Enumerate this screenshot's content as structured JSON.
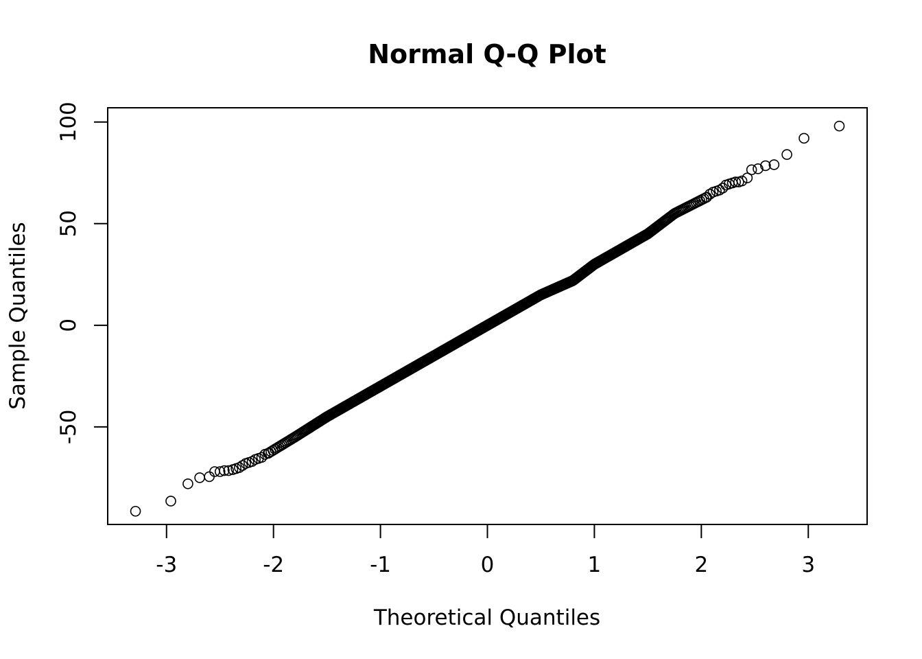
{
  "chart_data": {
    "type": "scatter",
    "title": "Normal Q-Q Plot",
    "xlabel": "Theoretical Quantiles",
    "ylabel": "Sample Quantiles",
    "xlim": [
      -3.55,
      3.55
    ],
    "ylim": [
      -98,
      107
    ],
    "xticks": [
      -3,
      -2,
      -1,
      0,
      1,
      2,
      3
    ],
    "xtick_labels": [
      "-3",
      "-2",
      "-1",
      "0",
      "1",
      "2",
      "3"
    ],
    "yticks": [
      -50,
      0,
      50,
      100
    ],
    "ytick_labels": [
      "-50",
      "0",
      "50",
      "100"
    ],
    "grid": false,
    "legend": "none",
    "point_style": "open-circle",
    "n_points": 1000,
    "line_fit": {
      "intercept": 0.0,
      "slope": 30.0
    },
    "tail_points": [
      {
        "x": -3.29,
        "y": -91.5
      },
      {
        "x": -2.96,
        "y": -86.5
      },
      {
        "x": -2.8,
        "y": -78.0
      },
      {
        "x": -2.69,
        "y": -75.0
      },
      {
        "x": -2.6,
        "y": -74.5
      },
      {
        "x": -2.55,
        "y": -72.0
      },
      {
        "x": -2.5,
        "y": -72.0
      },
      {
        "x": -2.46,
        "y": -71.5
      },
      {
        "x": -2.42,
        "y": -71.5
      },
      {
        "x": -2.38,
        "y": -71.0
      },
      {
        "x": -2.35,
        "y": -70.5
      },
      {
        "x": -2.32,
        "y": -70.0
      },
      {
        "x": -2.29,
        "y": -69.0
      },
      {
        "x": -2.26,
        "y": -68.0
      },
      {
        "x": -2.23,
        "y": -67.5
      },
      {
        "x": -2.2,
        "y": -67.0
      },
      {
        "x": -2.17,
        "y": -66.0
      },
      {
        "x": -2.14,
        "y": -65.5
      },
      {
        "x": -2.11,
        "y": -65.0
      },
      {
        "x": -2.08,
        "y": -63.5
      },
      {
        "x": -2.05,
        "y": -63.0
      },
      {
        "x": 2.05,
        "y": 63.0
      },
      {
        "x": 2.08,
        "y": 64.5
      },
      {
        "x": 2.11,
        "y": 65.5
      },
      {
        "x": 2.14,
        "y": 66.0
      },
      {
        "x": 2.17,
        "y": 66.5
      },
      {
        "x": 2.2,
        "y": 67.5
      },
      {
        "x": 2.23,
        "y": 69.0
      },
      {
        "x": 2.26,
        "y": 69.5
      },
      {
        "x": 2.29,
        "y": 70.0
      },
      {
        "x": 2.32,
        "y": 70.5
      },
      {
        "x": 2.35,
        "y": 70.5
      },
      {
        "x": 2.38,
        "y": 71.0
      },
      {
        "x": 2.43,
        "y": 72.5
      },
      {
        "x": 2.47,
        "y": 76.5
      },
      {
        "x": 2.53,
        "y": 77.0
      },
      {
        "x": 2.6,
        "y": 78.5
      },
      {
        "x": 2.68,
        "y": 79.0
      },
      {
        "x": 2.8,
        "y": 84.0
      },
      {
        "x": 2.96,
        "y": 92.0
      },
      {
        "x": 3.29,
        "y": 98.0
      }
    ],
    "body_anchors": [
      {
        "x": -2.05,
        "y": -63.0
      },
      {
        "x": -1.8,
        "y": -55.0
      },
      {
        "x": -1.5,
        "y": -45.0
      },
      {
        "x": -1.0,
        "y": -30.0
      },
      {
        "x": -0.5,
        "y": -15.0
      },
      {
        "x": 0.0,
        "y": 0.0
      },
      {
        "x": 0.5,
        "y": 15.0
      },
      {
        "x": 0.8,
        "y": 22.0
      },
      {
        "x": 1.0,
        "y": 30.0
      },
      {
        "x": 1.5,
        "y": 45.0
      },
      {
        "x": 1.75,
        "y": 55.0
      },
      {
        "x": 2.05,
        "y": 63.0
      }
    ]
  }
}
